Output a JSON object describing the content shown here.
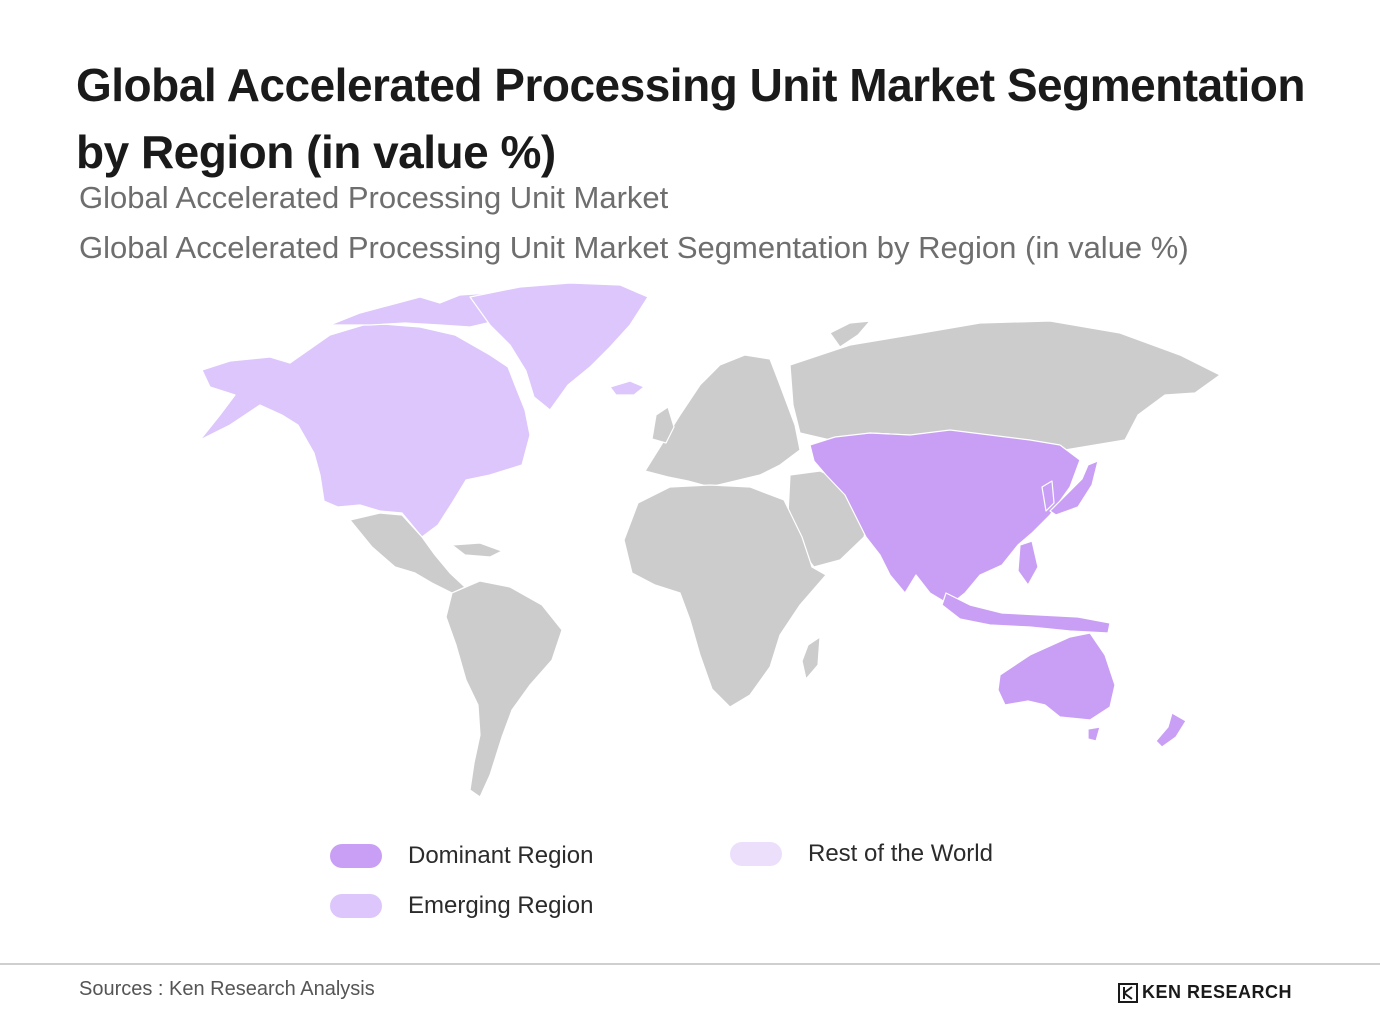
{
  "header": {
    "title_line1": "Global Accelerated Processing Unit Market Segmentation",
    "title_line2": "by Region (in value %)",
    "subtitle1": "Global Accelerated Processing Unit Market",
    "subtitle2": "Global Accelerated Processing Unit Market Segmentation by Region (in value %)"
  },
  "map": {
    "regions": [
      {
        "name": "North America & Greenland",
        "category": "emerging"
      },
      {
        "name": "Asia Pacific",
        "category": "dominant"
      },
      {
        "name": "Australia & New Zealand",
        "category": "dominant"
      },
      {
        "name": "Europe",
        "category": "rest"
      },
      {
        "name": "Russia & North Asia",
        "category": "rest"
      },
      {
        "name": "Middle East",
        "category": "rest"
      },
      {
        "name": "Africa",
        "category": "rest"
      },
      {
        "name": "Latin America",
        "category": "rest"
      }
    ],
    "colors": {
      "dominant": "#c99ff5",
      "emerging": "#dcc6fb",
      "rest": "#cccccc",
      "rest_legend": "#ecdffc",
      "border": "#ffffff"
    }
  },
  "legend": {
    "items": [
      {
        "label": "Dominant Region",
        "color": "#c99ff5"
      },
      {
        "label": "Emerging Region",
        "color": "#dcc6fb"
      },
      {
        "label": "Rest of the World",
        "color": "#ecdffc"
      }
    ]
  },
  "footer": {
    "source": "Sources : Ken Research Analysis",
    "logo_text": "KEN RESEARCH",
    "logo_icon": "ken-research-logo-icon"
  }
}
